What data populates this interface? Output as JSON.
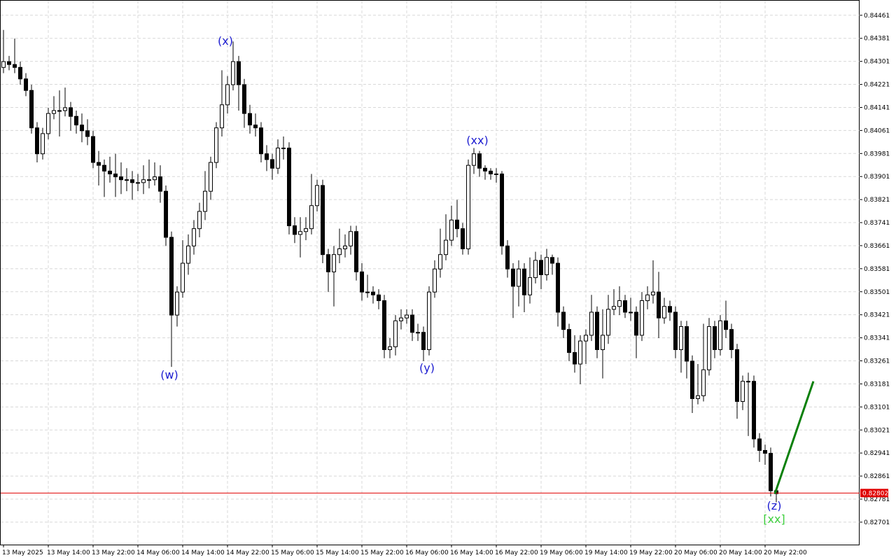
{
  "chart_data": {
    "type": "candlestick",
    "categories": [
      "13 May 2025",
      null,
      null,
      null,
      null,
      null,
      null,
      null,
      "13 May 14:00",
      null,
      null,
      null,
      null,
      null,
      null,
      null,
      "13 May 22:00",
      null,
      null,
      null,
      null,
      null,
      null,
      null,
      "14 May 06:00",
      null,
      null,
      null,
      null,
      null,
      null,
      null,
      "14 May 14:00",
      null,
      null,
      null,
      null,
      null,
      null,
      null,
      "14 May 22:00",
      null,
      null,
      null,
      null,
      null,
      null,
      null,
      "15 May 06:00",
      null,
      null,
      null,
      null,
      null,
      null,
      null,
      "15 May 14:00",
      null,
      null,
      null,
      null,
      null,
      null,
      null,
      "15 May 22:00",
      null,
      null,
      null,
      null,
      null,
      null,
      null,
      "16 May 06:00",
      null,
      null,
      null,
      null,
      null,
      null,
      null,
      "16 May 14:00",
      null,
      null,
      null,
      null,
      null,
      null,
      null,
      "16 May 22:00",
      null,
      null,
      null,
      null,
      null,
      null,
      null,
      "19 May 06:00",
      null,
      null,
      null,
      null,
      null,
      null,
      null,
      "19 May 14:00",
      null,
      null,
      null,
      null,
      null,
      null,
      null,
      "19 May 22:00",
      null,
      null,
      null,
      null,
      null,
      null,
      null,
      "20 May 06:00",
      null,
      null,
      null,
      null,
      null,
      null,
      null,
      "20 May 14:00",
      null,
      null,
      null,
      null,
      null,
      null,
      null,
      "20 May 22:00",
      null,
      null
    ],
    "open": [
      0.8428,
      0.843,
      0.8429,
      0.8428,
      0.8424,
      0.842,
      0.8407,
      0.8398,
      0.8405,
      0.8412,
      0.8413,
      0.8413,
      0.8414,
      0.8411,
      0.8408,
      0.8406,
      0.8404,
      0.8395,
      0.8394,
      0.8392,
      0.8391,
      0.839,
      0.8389,
      0.8389,
      0.8388,
      0.8388,
      0.8389,
      0.8389,
      0.839,
      0.8385,
      0.8369,
      0.8342,
      0.835,
      0.836,
      0.8366,
      0.8372,
      0.8378,
      0.8385,
      0.8395,
      0.8407,
      0.8415,
      0.8422,
      0.843,
      0.8422,
      0.8412,
      0.8408,
      0.8407,
      0.8398,
      0.8396,
      0.8393,
      0.84,
      0.84,
      0.8373,
      0.837,
      0.8371,
      0.8372,
      0.838,
      0.8387,
      0.8363,
      0.8357,
      0.8363,
      0.8365,
      0.8366,
      0.8371,
      0.8357,
      0.835,
      0.835,
      0.8349,
      0.8347,
      0.833,
      0.8331,
      0.834,
      0.8341,
      0.8342,
      0.8336,
      0.8336,
      0.833,
      0.835,
      0.8358,
      0.8363,
      0.8368,
      0.8375,
      0.8372,
      0.8365,
      0.8394,
      0.8398,
      0.8393,
      0.8392,
      0.8391,
      0.8391,
      0.8366,
      0.8358,
      0.8352,
      0.8358,
      0.8349,
      0.8355,
      0.8361,
      0.8356,
      0.8362,
      0.836,
      0.8343,
      0.8337,
      0.8329,
      0.8325,
      0.8333,
      0.8335,
      0.8343,
      0.833,
      0.8335,
      0.8344,
      0.8345,
      0.8347,
      0.8343,
      0.8343,
      0.8335,
      0.8347,
      0.8349,
      0.835,
      0.8341,
      0.8345,
      0.8343,
      0.833,
      0.8338,
      0.8326,
      0.8313,
      0.8314,
      0.8323,
      0.8338,
      0.833,
      0.834,
      0.8337,
      0.833,
      0.8312,
      0.8319,
      0.8319,
      0.8299,
      0.8295,
      0.8294,
      0.8281
    ],
    "high": [
      0.8441,
      0.8432,
      0.8438,
      0.843,
      0.8426,
      0.8422,
      0.8409,
      0.8407,
      0.8414,
      0.8418,
      0.842,
      0.8421,
      0.8416,
      0.8413,
      0.8412,
      0.841,
      0.8406,
      0.8399,
      0.8396,
      0.8397,
      0.8398,
      0.8395,
      0.8393,
      0.8392,
      0.8391,
      0.8394,
      0.8396,
      0.8395,
      0.8394,
      0.8387,
      0.8371,
      0.8352,
      0.8368,
      0.837,
      0.8375,
      0.8381,
      0.8392,
      0.8397,
      0.8409,
      0.8427,
      0.8425,
      0.8437,
      0.8432,
      0.8424,
      0.8415,
      0.8412,
      0.8409,
      0.8401,
      0.8398,
      0.8403,
      0.8404,
      0.8402,
      0.8376,
      0.8376,
      0.8376,
      0.8391,
      0.8389,
      0.8389,
      0.8365,
      0.8366,
      0.8372,
      0.837,
      0.8373,
      0.8373,
      0.836,
      0.8356,
      0.8352,
      0.8351,
      0.8349,
      0.8334,
      0.8342,
      0.8344,
      0.8344,
      0.8344,
      0.8339,
      0.8338,
      0.8352,
      0.8361,
      0.8372,
      0.8377,
      0.838,
      0.8382,
      0.8374,
      0.8396,
      0.84,
      0.8399,
      0.8394,
      0.8393,
      0.8393,
      0.8392,
      0.8368,
      0.836,
      0.8361,
      0.836,
      0.8362,
      0.8364,
      0.8363,
      0.8365,
      0.8363,
      0.8362,
      0.8345,
      0.8339,
      0.8335,
      0.8335,
      0.8337,
      0.8349,
      0.8345,
      0.8344,
      0.8349,
      0.8351,
      0.8352,
      0.8349,
      0.8348,
      0.8345,
      0.835,
      0.8352,
      0.8361,
      0.8357,
      0.8348,
      0.8347,
      0.8345,
      0.834,
      0.834,
      0.8328,
      0.8325,
      0.8339,
      0.8341,
      0.834,
      0.8342,
      0.8347,
      0.8339,
      0.8332,
      0.8321,
      0.8322,
      0.8321,
      0.8301,
      0.8297,
      0.8296,
      0.8282
    ],
    "low": [
      0.8426,
      0.8427,
      0.8426,
      0.8422,
      0.8418,
      0.8405,
      0.8395,
      0.8396,
      0.8403,
      0.841,
      0.8404,
      0.8411,
      0.8406,
      0.8405,
      0.8402,
      0.8401,
      0.8393,
      0.8387,
      0.8383,
      0.8388,
      0.8383,
      0.8384,
      0.8385,
      0.8382,
      0.8385,
      0.8384,
      0.8386,
      0.8387,
      0.8381,
      0.8366,
      0.8324,
      0.8338,
      0.8348,
      0.8356,
      0.8363,
      0.8369,
      0.8375,
      0.8382,
      0.8393,
      0.8404,
      0.8412,
      0.842,
      0.8413,
      0.8407,
      0.8405,
      0.8404,
      0.8395,
      0.8392,
      0.8389,
      0.8391,
      0.8396,
      0.837,
      0.8367,
      0.8362,
      0.8368,
      0.837,
      0.8378,
      0.836,
      0.835,
      0.8345,
      0.836,
      0.8362,
      0.8363,
      0.8354,
      0.8347,
      0.8348,
      0.8346,
      0.8344,
      0.8327,
      0.8327,
      0.8328,
      0.8337,
      0.8339,
      0.8333,
      0.8333,
      0.8326,
      0.8328,
      0.8348,
      0.8355,
      0.8361,
      0.8366,
      0.8369,
      0.8363,
      0.8363,
      0.8391,
      0.839,
      0.8389,
      0.8389,
      0.8388,
      0.8363,
      0.8355,
      0.8341,
      0.8345,
      0.8343,
      0.8346,
      0.8353,
      0.8351,
      0.8354,
      0.8356,
      0.8338,
      0.8334,
      0.8326,
      0.8322,
      0.8318,
      0.8325,
      0.8333,
      0.8327,
      0.832,
      0.8332,
      0.8342,
      0.8342,
      0.8341,
      0.834,
      0.8327,
      0.8333,
      0.8344,
      0.8346,
      0.8334,
      0.8339,
      0.834,
      0.8327,
      0.8322,
      0.832,
      0.8308,
      0.8311,
      0.8312,
      0.8321,
      0.8327,
      0.8328,
      0.8334,
      0.8327,
      0.8306,
      0.8309,
      0.83,
      0.8296,
      0.8291,
      0.829,
      0.8279,
      0.8277
    ],
    "close": [
      0.843,
      0.8429,
      0.8428,
      0.8424,
      0.842,
      0.8407,
      0.8398,
      0.8405,
      0.8412,
      0.8413,
      0.8413,
      0.8414,
      0.8411,
      0.8408,
      0.8406,
      0.8404,
      0.8395,
      0.8394,
      0.8392,
      0.8391,
      0.839,
      0.8389,
      0.8389,
      0.8388,
      0.8388,
      0.8389,
      0.8389,
      0.839,
      0.8385,
      0.8369,
      0.8342,
      0.835,
      0.836,
      0.8366,
      0.8372,
      0.8378,
      0.8385,
      0.8395,
      0.8407,
      0.8415,
      0.8422,
      0.843,
      0.8422,
      0.8412,
      0.8408,
      0.8407,
      0.8398,
      0.8396,
      0.8393,
      0.84,
      0.84,
      0.8373,
      0.837,
      0.8371,
      0.8372,
      0.838,
      0.8387,
      0.8363,
      0.8357,
      0.8363,
      0.8365,
      0.8366,
      0.8371,
      0.8357,
      0.835,
      0.835,
      0.8349,
      0.8347,
      0.833,
      0.8331,
      0.834,
      0.8341,
      0.8342,
      0.8336,
      0.8336,
      0.833,
      0.835,
      0.8358,
      0.8363,
      0.8368,
      0.8375,
      0.8372,
      0.8365,
      0.8394,
      0.8398,
      0.8393,
      0.8392,
      0.8391,
      0.8391,
      0.8366,
      0.8358,
      0.8352,
      0.8358,
      0.8349,
      0.8355,
      0.8361,
      0.8356,
      0.8362,
      0.836,
      0.8343,
      0.8337,
      0.8329,
      0.8325,
      0.8333,
      0.8335,
      0.8343,
      0.833,
      0.8335,
      0.8344,
      0.8345,
      0.8347,
      0.8343,
      0.8343,
      0.8335,
      0.8347,
      0.8349,
      0.835,
      0.8341,
      0.8345,
      0.8343,
      0.833,
      0.8338,
      0.8326,
      0.8313,
      0.8314,
      0.8323,
      0.8338,
      0.833,
      0.834,
      0.8337,
      0.833,
      0.8312,
      0.8319,
      0.8319,
      0.8299,
      0.8295,
      0.8294,
      0.8281,
      0.828
    ],
    "ylim": [
      0.82623,
      0.84514
    ],
    "yticks": [
      0.84461,
      0.84381,
      0.84301,
      0.84221,
      0.84141,
      0.84061,
      0.83981,
      0.83901,
      0.83821,
      0.83741,
      0.83661,
      0.83581,
      0.83501,
      0.83421,
      0.83341,
      0.83261,
      0.83181,
      0.83101,
      0.83021,
      0.82941,
      0.82861,
      0.82781,
      0.82701
    ],
    "grid": true,
    "current_price": {
      "value": 0.82802,
      "color": "#e00000"
    },
    "projection": {
      "color": "#0a800a",
      "values": [
        0.828,
        0.8319
      ]
    },
    "annotations": [
      {
        "text": "(w)",
        "color": "#1c1cd0"
      },
      {
        "text": "(x)",
        "color": "#1c1cd0"
      },
      {
        "text": "(xx)",
        "color": "#1c1cd0"
      },
      {
        "text": "(y)",
        "color": "#1c1cd0"
      },
      {
        "text": "(z)",
        "color": "#1c1cd0"
      },
      {
        "text": "[xx]",
        "color": "#3ecf3e"
      }
    ]
  }
}
